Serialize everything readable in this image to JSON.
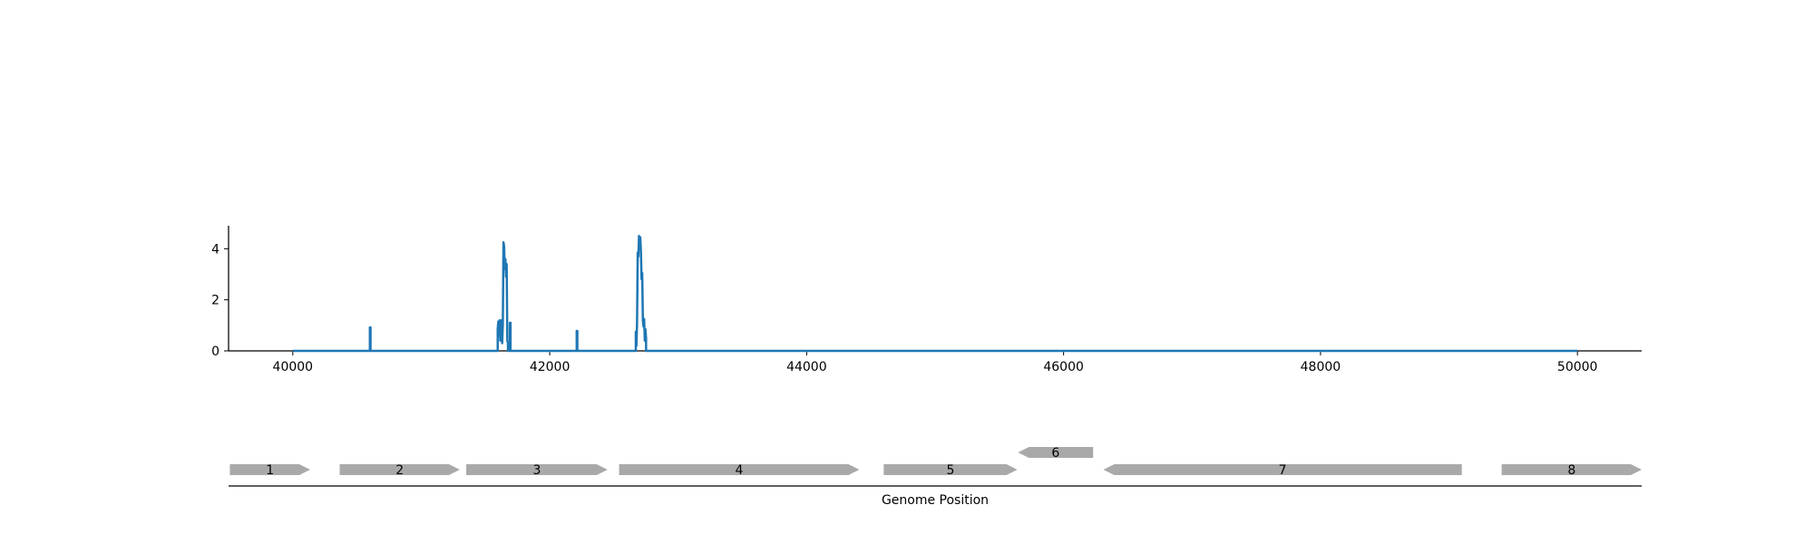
{
  "chart_data": [
    {
      "type": "line",
      "xlim": [
        39500,
        50500
      ],
      "ylim": [
        0,
        4.9
      ],
      "x_ticks": [
        40000,
        42000,
        44000,
        46000,
        48000,
        50000
      ],
      "x_tick_labels": [
        "40000",
        "42000",
        "44000",
        "46000",
        "48000",
        "50000"
      ],
      "y_ticks": [
        0,
        2,
        4
      ],
      "y_tick_labels": [
        "0",
        "2",
        "4"
      ],
      "grid": false,
      "series": [
        {
          "color": "#1f77b4",
          "x": [
            40000,
            40600,
            40600,
            40605,
            40605,
            41595,
            41595,
            41600,
            41605,
            41610,
            41615,
            41620,
            41625,
            41630,
            41635,
            41640,
            41645,
            41650,
            41655,
            41660,
            41665,
            41670,
            41675,
            41675,
            41690,
            41690,
            41695,
            41695,
            42210,
            42210,
            42215,
            42215,
            42670,
            42670,
            42675,
            42680,
            42685,
            42690,
            42695,
            42700,
            42705,
            42710,
            42715,
            42720,
            42725,
            42730,
            42735,
            42740,
            42745,
            42750,
            42750,
            50000
          ],
          "y": [
            0,
            0,
            0.92,
            0.92,
            0,
            0,
            0.85,
            1.15,
            0.6,
            1.2,
            0.4,
            1.18,
            1.2,
            0.3,
            1.05,
            4.25,
            4.1,
            3.2,
            3.6,
            2.9,
            3.4,
            0.4,
            0.3,
            0,
            0,
            1.1,
            1.1,
            0,
            0,
            0.78,
            0.78,
            0,
            0,
            0.75,
            0.2,
            1.15,
            3.85,
            3.7,
            4.5,
            4.4,
            4.45,
            3.9,
            2.8,
            3.05,
            1.2,
            0.95,
            1.25,
            0.4,
            0.85,
            0.5,
            0,
            0
          ]
        }
      ]
    },
    {
      "type": "gene-map",
      "xlabel": "Genome Position",
      "xlim": [
        39500,
        50500
      ],
      "color": "#a9a9a9",
      "genes": [
        {
          "label": "1",
          "start": 39510,
          "end": 40135,
          "strand": "+",
          "row": 0
        },
        {
          "label": "2",
          "start": 40365,
          "end": 41300,
          "strand": "+",
          "row": 0
        },
        {
          "label": "3",
          "start": 41350,
          "end": 42450,
          "strand": "+",
          "row": 0
        },
        {
          "label": "4",
          "start": 42540,
          "end": 44410,
          "strand": "+",
          "row": 0
        },
        {
          "label": "5",
          "start": 44600,
          "end": 45640,
          "strand": "+",
          "row": 0
        },
        {
          "label": "6",
          "start": 45645,
          "end": 46230,
          "strand": "-",
          "row": 1
        },
        {
          "label": "7",
          "start": 46310,
          "end": 49100,
          "strand": "-",
          "row": 0
        },
        {
          "label": "8",
          "start": 49410,
          "end": 50500,
          "strand": "+",
          "row": 0
        }
      ]
    }
  ]
}
